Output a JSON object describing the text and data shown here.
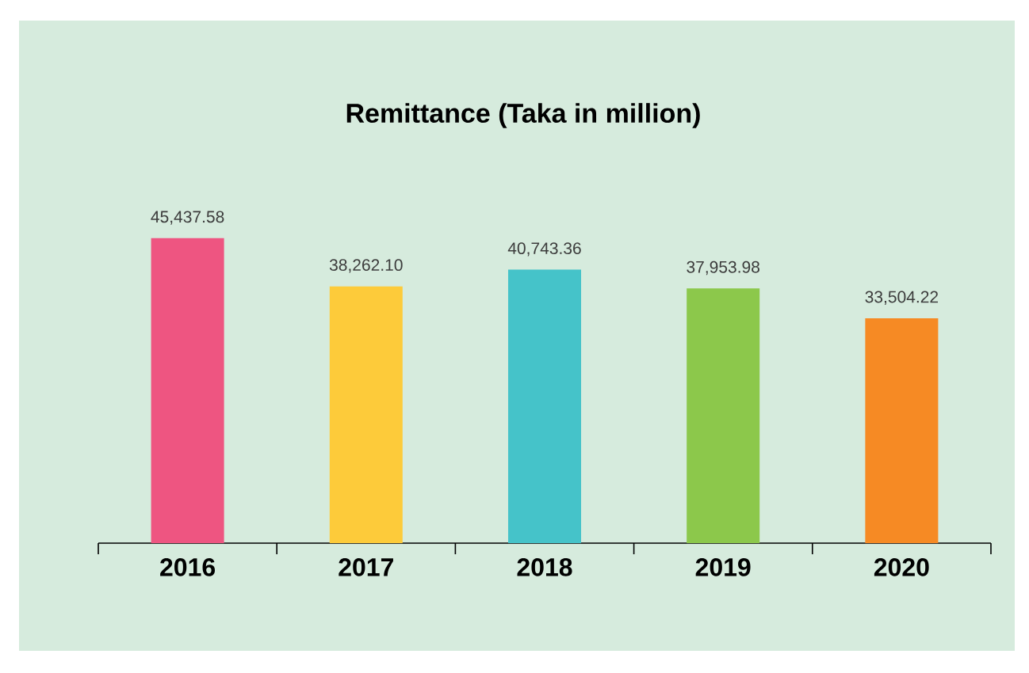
{
  "chart_data": {
    "type": "bar",
    "title": "Remittance  (Taka in million)",
    "categories": [
      "2016",
      "2017",
      "2018",
      "2019",
      "2020"
    ],
    "values": [
      45437.58,
      38262.1,
      40743.36,
      37953.98,
      33504.22
    ],
    "value_labels": [
      "45,437.58",
      "38,262.10",
      "40,743.36",
      "37,953.98",
      "33,504.22"
    ],
    "colors": [
      "#ee5581",
      "#fdcb3a",
      "#45c3c9",
      "#8cc84b",
      "#f68a24"
    ]
  }
}
